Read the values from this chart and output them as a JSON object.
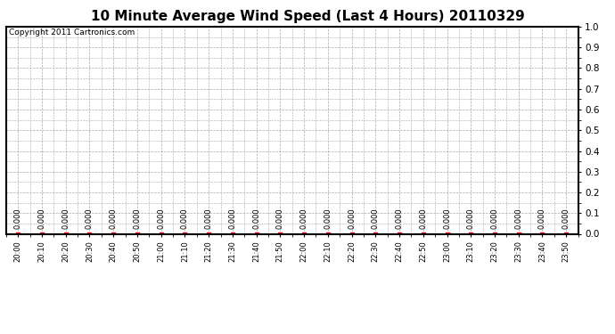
{
  "title": "10 Minute Average Wind Speed (Last 4 Hours) 20110329",
  "copyright_text": "Copyright 2011 Cartronics.com",
  "x_labels": [
    "20:00",
    "20:10",
    "20:20",
    "20:30",
    "20:40",
    "20:50",
    "21:00",
    "21:10",
    "21:20",
    "21:30",
    "21:40",
    "21:50",
    "22:00",
    "22:10",
    "22:20",
    "22:30",
    "22:40",
    "22:50",
    "23:00",
    "23:10",
    "23:20",
    "23:30",
    "23:40",
    "23:50"
  ],
  "y_values": [
    0.0,
    0.0,
    0.0,
    0.0,
    0.0,
    0.0,
    0.0,
    0.0,
    0.0,
    0.0,
    0.0,
    0.0,
    0.0,
    0.0,
    0.0,
    0.0,
    0.0,
    0.0,
    0.0,
    0.0,
    0.0,
    0.0,
    0.0,
    0.0
  ],
  "ylim": [
    0.0,
    1.0
  ],
  "yticks": [
    0.0,
    0.1,
    0.2,
    0.3,
    0.4,
    0.5,
    0.6,
    0.7,
    0.8,
    0.9,
    1.0
  ],
  "line_color": "#ff0000",
  "marker_color": "#ff0000",
  "bg_color": "#ffffff",
  "plot_bg_color": "#ffffff",
  "grid_color": "#aaaaaa",
  "title_fontsize": 11,
  "copyright_fontsize": 6.5,
  "tick_label_fontsize": 6,
  "ytick_label_fontsize": 7.5,
  "annotation_fontsize": 6
}
